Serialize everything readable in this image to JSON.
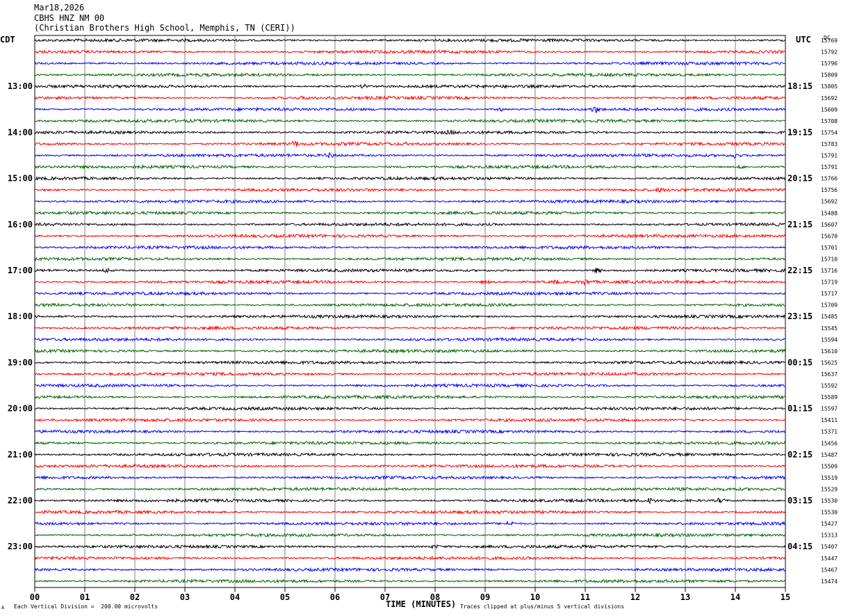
{
  "header": {
    "date": "Mar18,2026",
    "station": "CBHS HNZ NM 00",
    "location": "(Christian Brothers High School, Memphis, TN (CERI))"
  },
  "left_zone": "CDT",
  "right_zone": "UTC",
  "dc_label": "DC",
  "footer": {
    "scale": "Each Vertical Division =  200.00 microvolts",
    "clip": "Traces clipped at plus/minus 5 vertical divisions",
    "mark": "A"
  },
  "colors": {
    "cycle": [
      "#000000",
      "#ff0000",
      "#0000ff",
      "#006400"
    ],
    "grid": "#808080"
  },
  "chart_data": {
    "type": "line",
    "xlabel": "TIME (MINUTES)",
    "xlim": [
      0,
      15
    ],
    "x_ticks": [
      "00",
      "01",
      "02",
      "03",
      "04",
      "05",
      "06",
      "07",
      "08",
      "09",
      "10",
      "11",
      "12",
      "13",
      "14",
      "15"
    ],
    "left_hour_labels": [
      "13:00",
      "14:00",
      "15:00",
      "16:00",
      "17:00",
      "18:00",
      "19:00",
      "20:00",
      "21:00",
      "22:00",
      "23:00"
    ],
    "right_hour_labels": [
      "18:15",
      "19:15",
      "20:15",
      "21:15",
      "22:15",
      "23:15",
      "00:15",
      "01:15",
      "02:15",
      "03:15",
      "04:15"
    ],
    "first_labeled_trace": 4,
    "traces_per_hour": 4,
    "dc_values": [
      15769,
      15792,
      15796,
      15809,
      15805,
      15692,
      15609,
      15708,
      15754,
      15783,
      15791,
      15791,
      15766,
      15756,
      15692,
      15488,
      15607,
      15670,
      15701,
      15710,
      15716,
      15719,
      15717,
      15709,
      15485,
      15545,
      15594,
      15610,
      15625,
      15637,
      15592,
      15589,
      15597,
      15411,
      15371,
      15456,
      15487,
      15509,
      15519,
      15529,
      15530,
      15530,
      15427,
      15313,
      15407,
      15447,
      15467,
      15474
    ],
    "events": [
      {
        "trace": 4,
        "minute": 6.6,
        "amp": 2.5
      },
      {
        "trace": 5,
        "minute": 5.4,
        "amp": 2
      },
      {
        "trace": 6,
        "minute": 9.3,
        "amp": 2.5
      },
      {
        "trace": 6,
        "minute": 11.2,
        "amp": 4
      },
      {
        "trace": 8,
        "minute": 8.3,
        "amp": 2
      },
      {
        "trace": 9,
        "minute": 5.2,
        "amp": 3.5
      },
      {
        "trace": 10,
        "minute": 5.9,
        "amp": 3
      },
      {
        "trace": 10,
        "minute": 14.0,
        "amp": 3
      },
      {
        "trace": 11,
        "minute": 14.1,
        "amp": 2.5
      },
      {
        "trace": 13,
        "minute": 12.5,
        "amp": 2
      },
      {
        "trace": 20,
        "minute": 1.45,
        "amp": 3
      },
      {
        "trace": 20,
        "minute": 11.25,
        "amp": 4
      },
      {
        "trace": 21,
        "minute": 9.0,
        "amp": 3
      },
      {
        "trace": 21,
        "minute": 10.4,
        "amp": 2.5
      },
      {
        "trace": 21,
        "minute": 11.0,
        "amp": 3
      },
      {
        "trace": 40,
        "minute": 12.3,
        "amp": 3
      },
      {
        "trace": 40,
        "minute": 13.7,
        "amp": 3
      },
      {
        "trace": 42,
        "minute": 9.5,
        "amp": 3
      },
      {
        "trace": 44,
        "minute": 8.0,
        "amp": 2
      }
    ]
  }
}
